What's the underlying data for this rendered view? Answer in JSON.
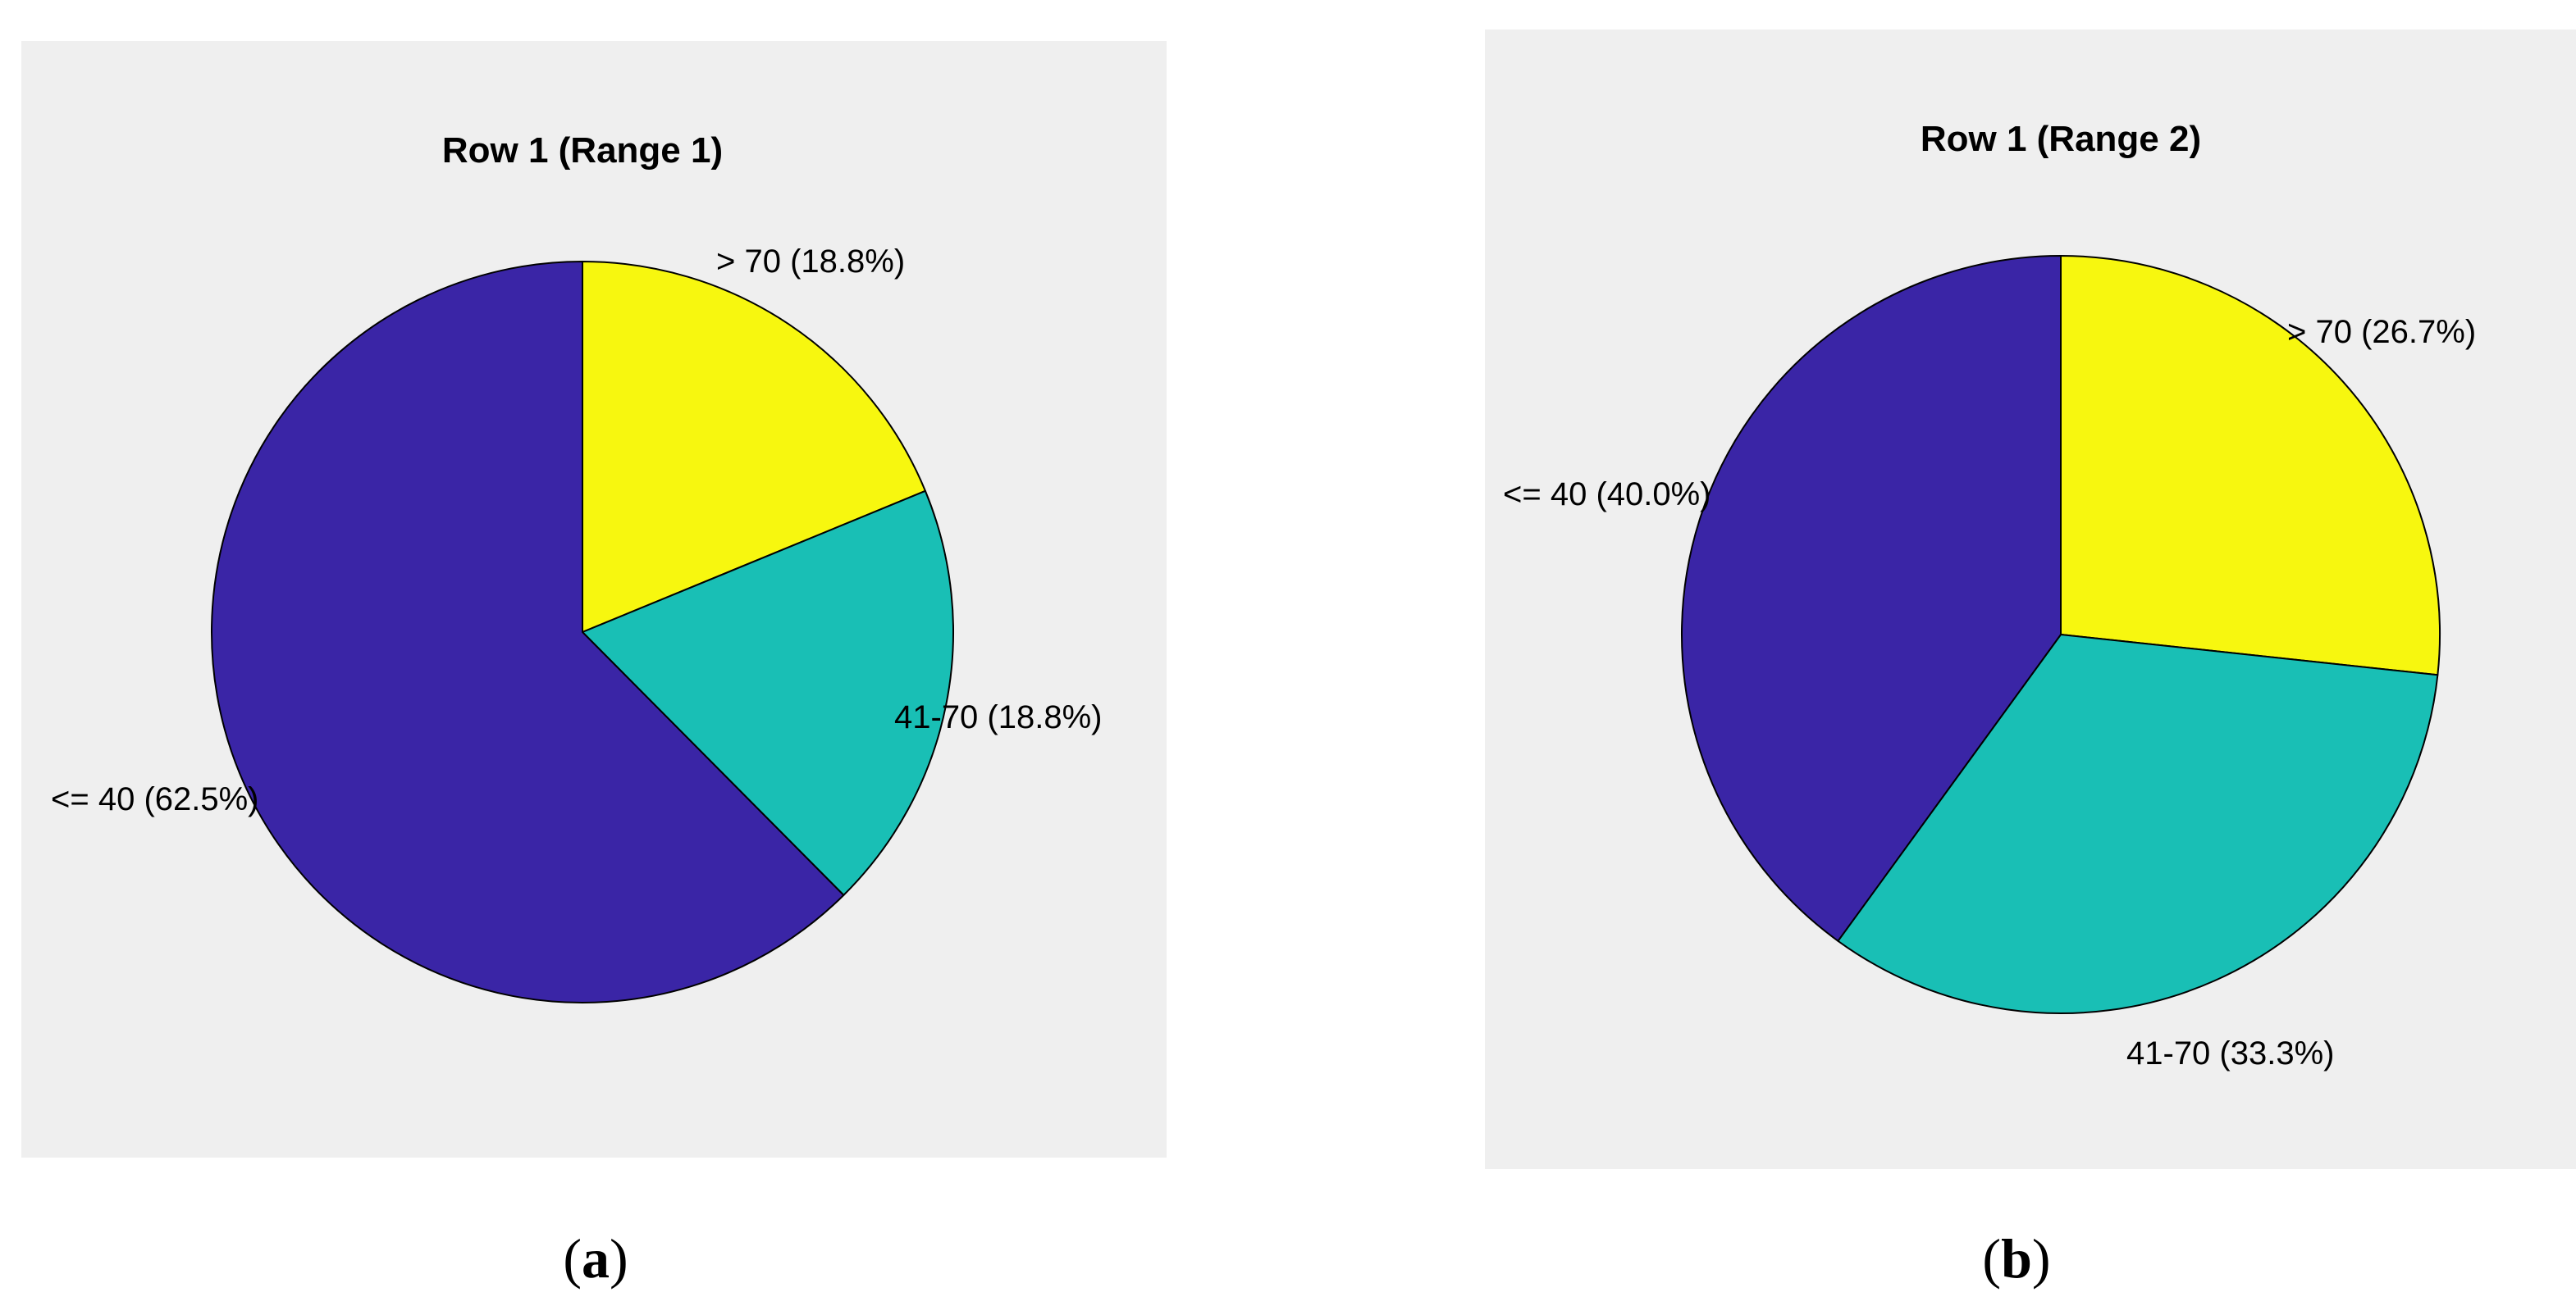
{
  "colors": {
    "panel_background": "#efefef",
    "slice_outline": "#000000",
    "text": "#000000"
  },
  "chart_data": [
    {
      "type": "pie",
      "title": "Row 1 (Range 1)",
      "caption_letter": "a",
      "slices": [
        {
          "label": "> 70 (18.8%)",
          "value": 18.8,
          "color": "#f7f70f"
        },
        {
          "label": "41-70 (18.8%)",
          "value": 18.8,
          "color": "#19bfb5"
        },
        {
          "label": "<= 40 (62.5%)",
          "value": 62.5,
          "color": "#3a25a6"
        }
      ],
      "start_angle": "12 o'clock",
      "direction": "clockwise",
      "legend": "none",
      "grid": false
    },
    {
      "type": "pie",
      "title": "Row 1 (Range 2)",
      "caption_letter": "b",
      "slices": [
        {
          "label": "> 70 (26.7%)",
          "value": 26.7,
          "color": "#f7f70f"
        },
        {
          "label": "41-70 (33.3%)",
          "value": 33.3,
          "color": "#19bfb5"
        },
        {
          "label": "<= 40 (40.0%)",
          "value": 40.0,
          "color": "#3a25a6"
        }
      ],
      "start_angle": "12 o'clock",
      "direction": "clockwise",
      "legend": "none",
      "grid": false
    }
  ]
}
